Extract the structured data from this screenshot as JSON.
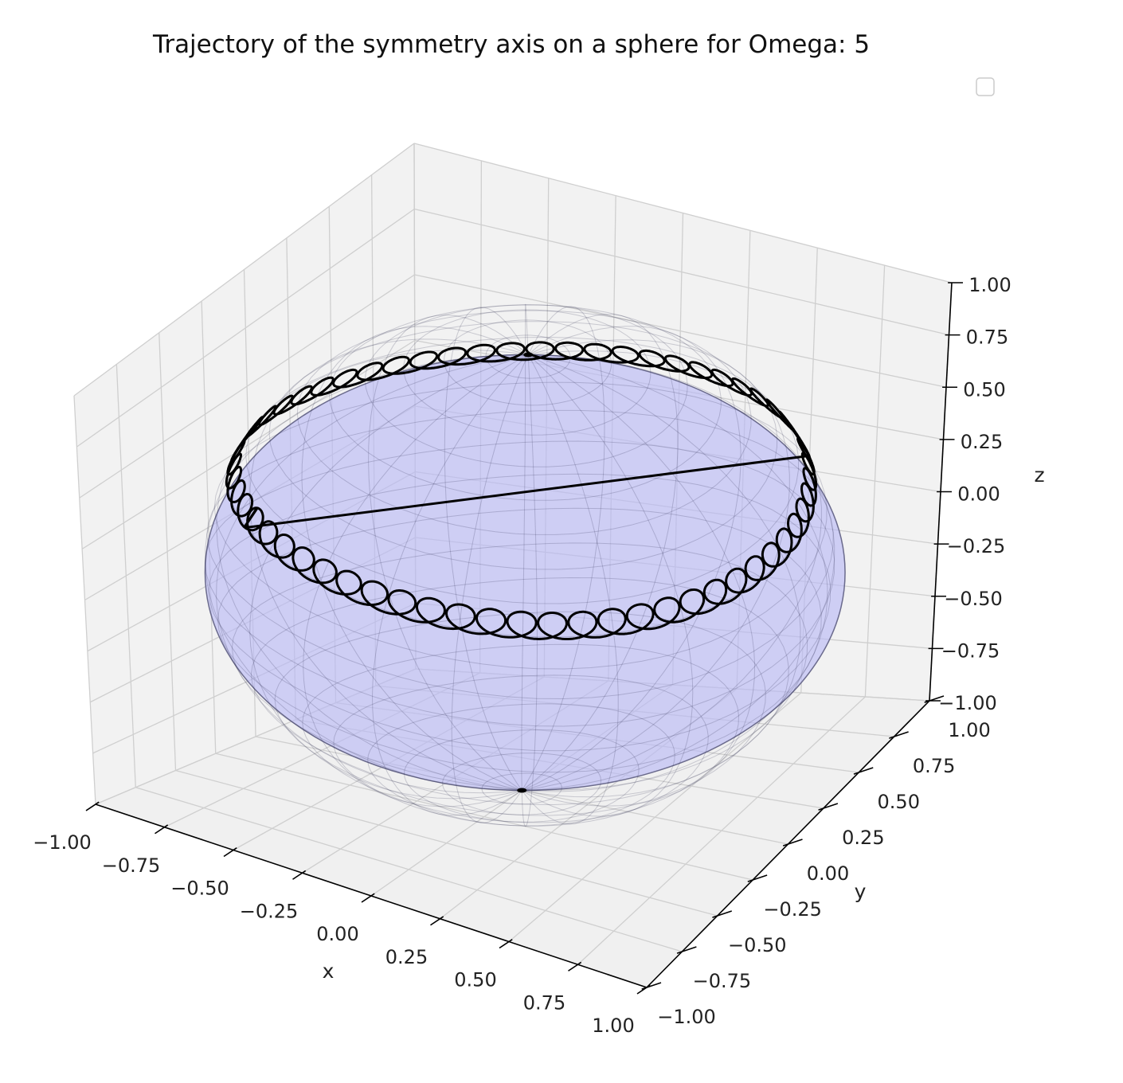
{
  "chart_data": {
    "type": "line",
    "projection": "3d",
    "title": "Trajectory of the symmetry axis on a sphere for Omega: 5",
    "xlabel": "x",
    "ylabel": "y",
    "zlabel": "z",
    "xlim": [
      -1.0,
      1.0
    ],
    "ylim": [
      -1.0,
      1.0
    ],
    "zlim": [
      -1.0,
      1.0
    ],
    "x_ticks": [
      "−1.00",
      "−0.75",
      "−0.50",
      "−0.25",
      "0.00",
      "0.25",
      "0.50",
      "0.75",
      "1.00"
    ],
    "y_ticks": [
      "−1.00",
      "−0.75",
      "−0.50",
      "−0.25",
      "0.00",
      "0.25",
      "0.50",
      "0.75",
      "1.00"
    ],
    "z_ticks": [
      "−1.00",
      "−0.75",
      "−0.50",
      "−0.25",
      "0.00",
      "0.25",
      "0.50",
      "0.75",
      "1.00"
    ],
    "tick_values": [
      -1.0,
      -0.75,
      -0.5,
      -0.25,
      0.0,
      0.25,
      0.5,
      0.75,
      1.0
    ],
    "grid": true,
    "legend": {
      "placement": "top-right",
      "entries": []
    },
    "sphere": {
      "radius": 1.0,
      "color": "#b8b8f5",
      "edge_color": "#222244"
    },
    "trajectory": {
      "color": "#000000",
      "mean_polar_angle_deg": 65,
      "nutation_amplitude_deg": 3,
      "loops": 60,
      "description_values": {
        "mean_z": 0.42
      }
    },
    "colors": {
      "pane": "#f2f2f2",
      "grid": "#cfcfcf",
      "axis": "#000000"
    }
  }
}
